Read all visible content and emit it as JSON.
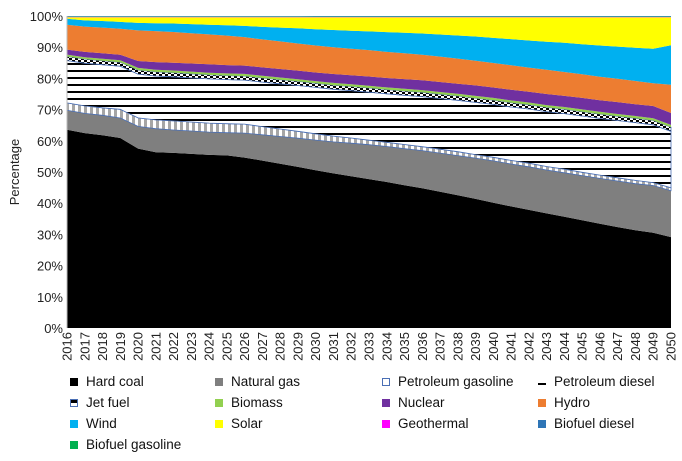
{
  "chart_data": {
    "type": "area",
    "stacked": true,
    "title": "",
    "xlabel": "",
    "ylabel": "Percentage",
    "ylim": [
      0,
      100
    ],
    "yticks": [
      "0%",
      "10%",
      "20%",
      "30%",
      "40%",
      "50%",
      "60%",
      "70%",
      "80%",
      "90%",
      "100%"
    ],
    "grid": false,
    "legend_position": "bottom",
    "x": [
      "2016",
      "2017",
      "2018",
      "2019",
      "2020",
      "2021",
      "2022",
      "2023",
      "2024",
      "2025",
      "2026",
      "2027",
      "2028",
      "2029",
      "2030",
      "2031",
      "2032",
      "2033",
      "2034",
      "2035",
      "2036",
      "2037",
      "2038",
      "2039",
      "2040",
      "2041",
      "2042",
      "2043",
      "2044",
      "2045",
      "2046",
      "2047",
      "2048",
      "2049",
      "2050"
    ],
    "series": [
      {
        "name": "Hard coal",
        "color": "#000000",
        "pattern": "solid",
        "values": [
          63.7,
          62.4,
          61.7,
          60.9,
          57.4,
          56.0,
          55.9,
          55.7,
          55.6,
          55.6,
          55.0,
          53.7,
          52.3,
          51.0,
          49.7,
          48.5,
          47.4,
          46.3,
          45.2,
          44.1,
          43.0,
          41.9,
          40.8,
          39.6,
          38.4,
          37.3,
          36.2,
          35.1,
          34.0,
          32.9,
          31.8,
          30.7,
          29.6,
          28.9,
          28.2
        ]
      },
      {
        "name": "Natural gas",
        "color": "#7f7f7f",
        "pattern": "solid",
        "values": [
          6.2,
          6.3,
          6.4,
          6.4,
          7.1,
          7.5,
          7.3,
          7.3,
          7.3,
          7.3,
          7.9,
          8.3,
          8.7,
          9.1,
          9.5,
          9.9,
          10.3,
          10.7,
          11.0,
          11.3,
          11.6,
          11.9,
          12.2,
          12.5,
          12.8,
          13.0,
          13.2,
          13.3,
          13.4,
          13.6,
          13.8,
          14.0,
          14.1,
          14.3,
          14.4
        ]
      },
      {
        "name": "Petroleum gasoline",
        "color": "#ffffff",
        "pattern": "vertical-stripes",
        "values": [
          2.4,
          2.4,
          2.4,
          2.8,
          2.7,
          2.8,
          2.9,
          2.9,
          2.9,
          2.9,
          2.9,
          2.6,
          2.4,
          2.2,
          2.0,
          1.8,
          1.6,
          1.4,
          1.3,
          1.3,
          1.2,
          1.2,
          1.2,
          1.1,
          1.1,
          1.1,
          1.1,
          1.1,
          1.1,
          1.0,
          1.0,
          1.0,
          1.0,
          0.9,
          0.9
        ]
      },
      {
        "name": "Petroleum diesel",
        "color": "#000000",
        "pattern": "horizontal-lines",
        "values": [
          13.6,
          13.7,
          13.8,
          13.8,
          14.0,
          14.0,
          14.1,
          14.1,
          14.2,
          14.2,
          14.2,
          14.3,
          14.4,
          14.5,
          14.6,
          14.7,
          14.8,
          14.9,
          15.0,
          15.2,
          15.4,
          15.6,
          15.8,
          16.0,
          16.2,
          16.4,
          16.6,
          16.8,
          17.0,
          17.2,
          17.3,
          17.4,
          17.5,
          17.5,
          17.5
        ]
      },
      {
        "name": "Jet fuel",
        "color": "#000000",
        "pattern": "checker",
        "values": [
          1.3,
          1.3,
          1.3,
          1.3,
          1.3,
          1.3,
          1.3,
          1.3,
          1.3,
          1.3,
          1.3,
          1.3,
          1.3,
          1.3,
          1.3,
          1.3,
          1.3,
          1.3,
          1.3,
          1.3,
          1.3,
          1.3,
          1.3,
          1.3,
          1.3,
          1.3,
          1.3,
          1.3,
          1.3,
          1.3,
          1.3,
          1.3,
          1.3,
          1.3,
          1.3
        ]
      },
      {
        "name": "Biomass",
        "color": "#92d050",
        "pattern": "solid",
        "values": [
          0.6,
          0.6,
          0.6,
          0.6,
          0.7,
          0.7,
          0.7,
          0.7,
          0.7,
          0.7,
          0.7,
          0.7,
          0.7,
          0.7,
          0.7,
          0.7,
          0.7,
          0.7,
          0.7,
          0.7,
          0.7,
          0.7,
          0.7,
          0.7,
          0.7,
          0.7,
          0.7,
          0.7,
          0.7,
          0.7,
          0.7,
          0.7,
          0.7,
          0.7,
          0.7
        ]
      },
      {
        "name": "Nuclear",
        "color": "#7030a0",
        "pattern": "solid",
        "values": [
          1.6,
          1.7,
          1.8,
          1.8,
          2.2,
          2.4,
          2.5,
          2.6,
          2.7,
          2.7,
          2.7,
          2.7,
          2.7,
          2.7,
          2.7,
          2.8,
          2.8,
          2.9,
          2.9,
          3.0,
          3.0,
          3.1,
          3.1,
          3.2,
          3.2,
          3.3,
          3.3,
          3.4,
          3.4,
          3.5,
          3.5,
          3.6,
          3.6,
          3.7,
          3.7
        ]
      },
      {
        "name": "Hydro",
        "color": "#ed7d31",
        "pattern": "solid",
        "values": [
          8.0,
          8.1,
          8.2,
          8.3,
          9.8,
          9.9,
          9.8,
          9.7,
          9.6,
          9.5,
          9.2,
          9.0,
          8.8,
          8.6,
          8.5,
          8.4,
          8.3,
          8.2,
          8.1,
          8.0,
          7.9,
          7.8,
          7.7,
          7.6,
          7.5,
          7.5,
          7.4,
          7.4,
          7.3,
          7.2,
          7.2,
          7.1,
          7.0,
          6.9,
          8.8
        ]
      },
      {
        "name": "Wind",
        "color": "#00b0f0",
        "pattern": "solid",
        "values": [
          1.9,
          2.0,
          2.1,
          2.2,
          2.4,
          2.5,
          2.7,
          2.9,
          3.1,
          3.3,
          3.6,
          4.0,
          4.4,
          4.8,
          5.1,
          5.4,
          5.6,
          5.8,
          6.1,
          6.3,
          6.5,
          6.8,
          7.1,
          7.4,
          7.7,
          8.0,
          8.3,
          8.6,
          8.9,
          9.2,
          9.5,
          9.8,
          10.1,
          10.5,
          12.2
        ]
      },
      {
        "name": "Solar",
        "color": "#ffff00",
        "pattern": "solid",
        "values": [
          0.5,
          1.0,
          1.2,
          1.5,
          1.8,
          1.9,
          2.0,
          2.2,
          2.4,
          2.6,
          2.8,
          3.1,
          3.3,
          3.5,
          3.8,
          4.0,
          4.2,
          4.4,
          4.6,
          4.8,
          5.0,
          5.3,
          5.6,
          5.9,
          6.3,
          6.7,
          7.1,
          7.5,
          7.8,
          8.2,
          8.6,
          8.9,
          9.2,
          9.5,
          8.7
        ]
      },
      {
        "name": "Geothermal",
        "color": "#ff00ff",
        "pattern": "solid",
        "values": [
          0.1,
          0.1,
          0.1,
          0.1,
          0.1,
          0.1,
          0.1,
          0.1,
          0.1,
          0.1,
          0.1,
          0.1,
          0.1,
          0.1,
          0.1,
          0.1,
          0.1,
          0.1,
          0.1,
          0.1,
          0.1,
          0.1,
          0.1,
          0.1,
          0.1,
          0.1,
          0.1,
          0.1,
          0.1,
          0.1,
          0.1,
          0.1,
          0.1,
          0.1,
          0.1
        ]
      },
      {
        "name": "Biofuel diesel",
        "color": "#2e75b6",
        "pattern": "solid",
        "values": [
          0.2,
          0.2,
          0.2,
          0.2,
          0.2,
          0.2,
          0.2,
          0.2,
          0.2,
          0.2,
          0.2,
          0.2,
          0.2,
          0.2,
          0.2,
          0.2,
          0.2,
          0.2,
          0.2,
          0.2,
          0.2,
          0.2,
          0.2,
          0.2,
          0.2,
          0.2,
          0.2,
          0.2,
          0.2,
          0.2,
          0.2,
          0.2,
          0.2,
          0.2,
          0.2
        ]
      },
      {
        "name": "Biofuel gasoline",
        "color": "#00b050",
        "pattern": "solid",
        "values": [
          0.1,
          0.1,
          0.1,
          0.1,
          0.1,
          0.1,
          0.1,
          0.1,
          0.1,
          0.1,
          0.1,
          0.1,
          0.1,
          0.1,
          0.1,
          0.1,
          0.1,
          0.1,
          0.1,
          0.1,
          0.1,
          0.1,
          0.1,
          0.1,
          0.1,
          0.1,
          0.1,
          0.1,
          0.1,
          0.1,
          0.1,
          0.1,
          0.1,
          0.1,
          0.1
        ]
      }
    ]
  }
}
